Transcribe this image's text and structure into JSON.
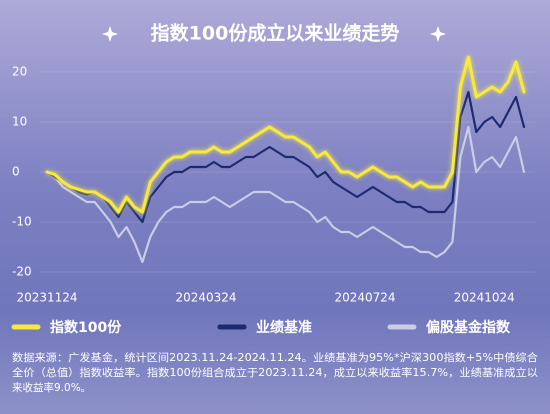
{
  "chart_data": {
    "type": "line",
    "title": "指数100份成立以来业绩走势",
    "categories": [
      "20231124",
      null,
      null,
      null,
      null,
      null,
      null,
      null,
      null,
      null,
      null,
      null,
      null,
      null,
      null,
      null,
      null,
      null,
      null,
      null,
      "20240324",
      null,
      null,
      null,
      null,
      null,
      null,
      null,
      null,
      null,
      null,
      null,
      null,
      null,
      null,
      null,
      null,
      null,
      null,
      null,
      "20240724",
      null,
      null,
      null,
      null,
      null,
      null,
      null,
      null,
      null,
      null,
      null,
      null,
      null,
      null,
      "20241024",
      null,
      null,
      null,
      null,
      null
    ],
    "series": [
      {
        "name": "指数100份",
        "color": "#f7ea3c",
        "values": [
          0,
          -0.5,
          -2,
          -3,
          -3.5,
          -4,
          -4,
          -5,
          -6,
          -8,
          -5,
          -7,
          -8,
          -2,
          0,
          2,
          3,
          3,
          4,
          4,
          4,
          5,
          4,
          4,
          5,
          6,
          7,
          8,
          9,
          8,
          7,
          7,
          6,
          5,
          3,
          4,
          2,
          0,
          0,
          -1,
          0,
          1,
          0,
          -1,
          -1,
          -2,
          -3,
          -2,
          -3,
          -3,
          -3,
          0,
          17,
          23,
          15,
          16,
          17,
          16,
          18,
          22,
          16
        ]
      },
      {
        "name": "业绩基准",
        "color": "#1e2a70",
        "values": [
          0,
          -1,
          -2,
          -3,
          -4,
          -4.5,
          -4,
          -5,
          -7,
          -9,
          -6,
          -8,
          -10,
          -5,
          -3,
          -1,
          0,
          0,
          1,
          1,
          1,
          2,
          1,
          1,
          2,
          3,
          3,
          4,
          5,
          4,
          3,
          3,
          2,
          1,
          -1,
          0,
          -2,
          -3,
          -4,
          -5,
          -4,
          -3,
          -4,
          -5,
          -6,
          -6,
          -7,
          -7,
          -8,
          -8,
          -8,
          -6,
          11,
          16,
          8,
          10,
          11,
          9,
          12,
          15,
          9
        ]
      },
      {
        "name": "偏股基金指数",
        "color": "#c9cde6",
        "values": [
          0,
          -1,
          -3,
          -4,
          -5,
          -6,
          -6,
          -8,
          -10,
          -13,
          -11,
          -14,
          -18,
          -13,
          -10,
          -8,
          -7,
          -7,
          -6,
          -6,
          -6,
          -5,
          -6,
          -7,
          -6,
          -5,
          -4,
          -4,
          -4,
          -5,
          -6,
          -6,
          -7,
          -8,
          -10,
          -9,
          -11,
          -12,
          -12,
          -13,
          -12,
          -11,
          -12,
          -13,
          -14,
          -15,
          -15,
          -16,
          -16,
          -17,
          -16,
          -14,
          3,
          9,
          0,
          2,
          3,
          1,
          4,
          7,
          0
        ]
      }
    ],
    "ylim": [
      -22,
      25
    ],
    "yticks": [
      -20,
      -10,
      0,
      10,
      20
    ],
    "grid": true,
    "notes": [
      "数据来源：广发基金，统计区间2023.11.24-2024.11.24。业绩基准为95%*沪深300指数+5%中债综合",
      "全价（总值）指数收益率。指数100份组合成立于2023.11.24，成立以来收益率15.7%，业绩基准成立以",
      "来收益率9.0%。"
    ]
  }
}
